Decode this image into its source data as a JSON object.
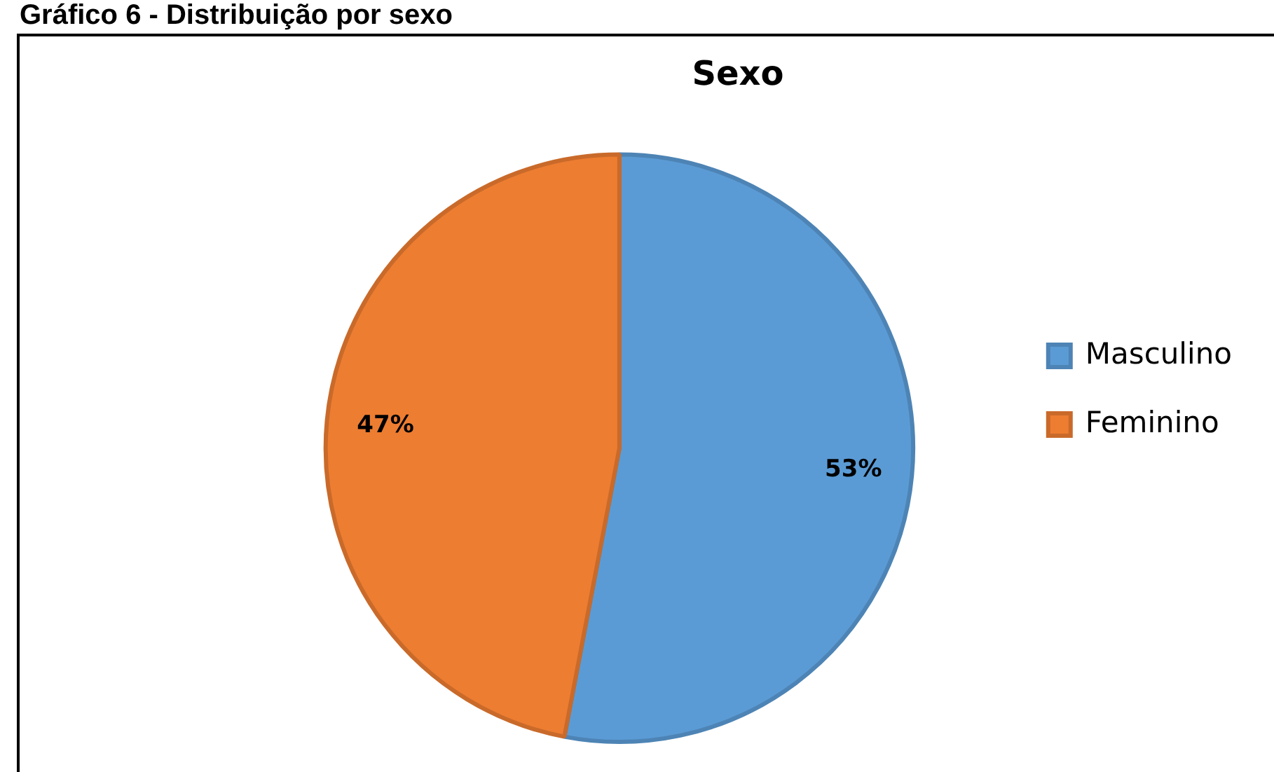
{
  "chart_data": {
    "type": "pie",
    "title": "Sexo",
    "categories": [
      "Masculino",
      "Feminino"
    ],
    "values": [
      53,
      47
    ],
    "colors": [
      "#5b9bd5",
      "#ed7d31"
    ],
    "value_labels": [
      "53%",
      "47%"
    ],
    "legend": "right",
    "annotations": [
      "Gráfico 6 - Distribuição por sexo"
    ]
  }
}
